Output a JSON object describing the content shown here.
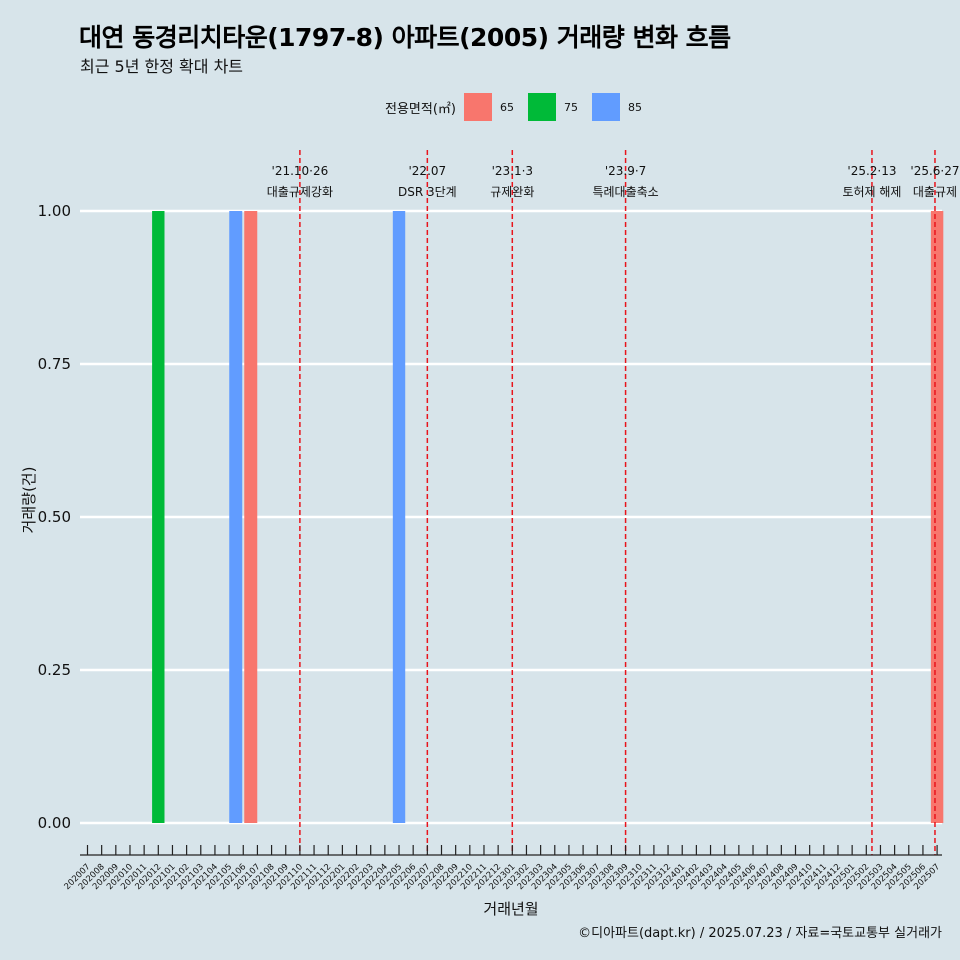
{
  "title": "대연 동경리치타운(1797-8) 아파트(2005) 거래량 변화 흐름",
  "subtitle": "최근 5년 한정 확대 차트",
  "caption": "©디아파트(dapt.kr) / 2025.07.23 / 자료=국토교통부 실거래가",
  "legend": {
    "title": "전용면적(㎡)",
    "items": [
      {
        "label": "65",
        "color": "#f8766d"
      },
      {
        "label": "75",
        "color": "#00ba38"
      },
      {
        "label": "85",
        "color": "#619cff"
      }
    ]
  },
  "chart_data": {
    "type": "bar",
    "xlabel": "거래년월",
    "ylabel": "거래량(건)",
    "ylim": [
      0,
      1
    ],
    "yticks": [
      "0.00",
      "0.25",
      "0.50",
      "0.75",
      "1.00"
    ],
    "categories": [
      "202007",
      "202008",
      "202009",
      "202010",
      "202011",
      "202012",
      "202101",
      "202102",
      "202103",
      "202104",
      "202105",
      "202106",
      "202107",
      "202108",
      "202109",
      "202110",
      "202111",
      "202112",
      "202201",
      "202202",
      "202203",
      "202204",
      "202205",
      "202206",
      "202207",
      "202208",
      "202209",
      "202210",
      "202211",
      "202212",
      "202301",
      "202302",
      "202303",
      "202304",
      "202305",
      "202306",
      "202307",
      "202308",
      "202309",
      "202310",
      "202311",
      "202312",
      "202401",
      "202402",
      "202403",
      "202404",
      "202405",
      "202406",
      "202407",
      "202408",
      "202409",
      "202410",
      "202411",
      "202412",
      "202501",
      "202502",
      "202503",
      "202504",
      "202505",
      "202506",
      "202507"
    ],
    "bars": [
      {
        "month": "202012",
        "area": "75",
        "value": 1
      },
      {
        "month": "202106",
        "area": "85",
        "value": 1
      },
      {
        "month": "202106",
        "area": "65",
        "value": 1
      },
      {
        "month": "202205",
        "area": "85",
        "value": 1
      },
      {
        "month": "202507",
        "area": "65",
        "value": 1
      }
    ],
    "events": [
      {
        "month": "202110",
        "offset": 0.0,
        "date": "'21.10·26",
        "label": "대출규제강화"
      },
      {
        "month": "202207",
        "offset": 0.0,
        "date": "'22.07",
        "label": "DSR 3단계"
      },
      {
        "month": "202301",
        "offset": 0.0,
        "date": "'23.1·3",
        "label": "규제완화"
      },
      {
        "month": "202309",
        "offset": 0.0,
        "date": "'23.9·7",
        "label": "특례대출축소"
      },
      {
        "month": "202502",
        "offset": 0.4,
        "date": "'25.2·13",
        "label": "토허제 해제"
      },
      {
        "month": "202506",
        "offset": 0.85,
        "date": "'25.6·27",
        "label": "대출규제"
      }
    ],
    "grid": true
  }
}
